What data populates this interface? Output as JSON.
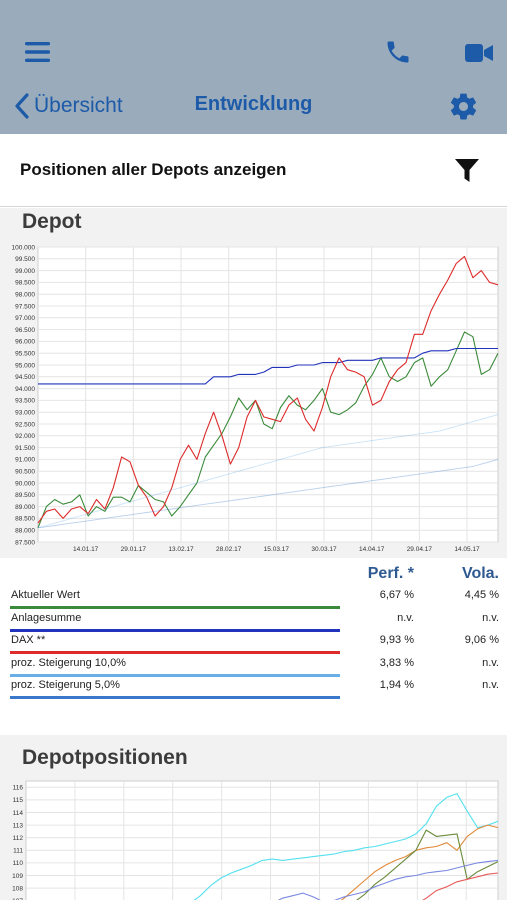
{
  "nav": {
    "back_label": "Übersicht",
    "title": "Entwicklung",
    "icons": [
      "menu-icon",
      "phone-icon",
      "video-icon",
      "chevron-left-icon",
      "gear-icon",
      "filter-icon"
    ]
  },
  "filter": {
    "label": "Positionen aller Depots anzeigen"
  },
  "depot": {
    "title": "Depot",
    "legend_headers": {
      "perf": "Perf. *",
      "vola": "Vola."
    },
    "legend": [
      {
        "name": "Aktueller Wert",
        "perf": "6,67 %",
        "vola": "4,45 %",
        "color": "#3a8a3a"
      },
      {
        "name": "Anlagesumme",
        "perf": "n.v.",
        "vola": "n.v.",
        "color": "#2233bb"
      },
      {
        "name": "DAX **",
        "perf": "9,93 %",
        "vola": "9,06 %",
        "color": "#dd2a2a"
      },
      {
        "name": "proz. Steigerung 10,0%",
        "perf": "3,83 %",
        "vola": "n.v.",
        "color": "#6aaee8"
      },
      {
        "name": "proz. Steigerung 5,0%",
        "perf": "1,94 %",
        "vola": "n.v.",
        "color": "#3a78cc"
      }
    ]
  },
  "positions": {
    "title": "Depotpositionen"
  },
  "chart_data": [
    {
      "type": "line",
      "title": "Depot",
      "x_ticks": [
        "14.01.17",
        "29.01.17",
        "13.02.17",
        "28.02.17",
        "15.03.17",
        "30.03.17",
        "14.04.17",
        "29.04.17",
        "14.05.17"
      ],
      "y_ticks": [
        "87.500",
        "88.000",
        "88.500",
        "89.000",
        "89.500",
        "90.000",
        "90.500",
        "91.000",
        "91.500",
        "92.000",
        "92.500",
        "93.000",
        "93.500",
        "94.000",
        "94.500",
        "95.000",
        "95.500",
        "96.000",
        "96.500",
        "97.000",
        "97.500",
        "98.000",
        "98.500",
        "99.000",
        "99.500",
        "100.000"
      ],
      "ylim": [
        87500,
        100000
      ],
      "grid": true,
      "series": [
        {
          "name": "Aktueller Wert",
          "color": "#3a8a3a",
          "values": [
            88100,
            89000,
            89300,
            89100,
            89200,
            89500,
            88600,
            89000,
            88800,
            89400,
            89400,
            89200,
            89900,
            89600,
            89300,
            89200,
            88600,
            89000,
            89500,
            90000,
            91100,
            91600,
            92100,
            92800,
            93600,
            93100,
            93500,
            92500,
            92300,
            93200,
            93700,
            93300,
            93100,
            93500,
            94000,
            93000,
            92900,
            93100,
            93400,
            94100,
            94600,
            95300,
            94500,
            94300,
            94500,
            95100,
            95300,
            94100,
            94500,
            94800,
            95600,
            96400,
            96200,
            94600,
            94800,
            95500
          ]
        },
        {
          "name": "Anlagesumme",
          "color": "#2233bb",
          "values": [
            94200,
            94200,
            94200,
            94200,
            94200,
            94200,
            94200,
            94200,
            94200,
            94200,
            94200,
            94200,
            94200,
            94200,
            94200,
            94200,
            94200,
            94200,
            94200,
            94200,
            94200,
            94500,
            94500,
            94500,
            94600,
            94600,
            94600,
            94700,
            94900,
            94900,
            94900,
            95000,
            95000,
            95000,
            95100,
            95100,
            95100,
            95200,
            95200,
            95200,
            95200,
            95300,
            95300,
            95300,
            95300,
            95300,
            95500,
            95600,
            95600,
            95600,
            95700,
            95700,
            95700,
            95700,
            95700,
            95700
          ]
        },
        {
          "name": "DAX **",
          "color": "#dd2a2a",
          "values": [
            88300,
            88800,
            88900,
            88500,
            88900,
            89000,
            88700,
            89300,
            88900,
            89800,
            91100,
            90900,
            89900,
            89400,
            88600,
            89000,
            89800,
            91000,
            91600,
            91000,
            92100,
            93000,
            92000,
            90800,
            91500,
            92800,
            93500,
            92800,
            92700,
            92600,
            93300,
            93600,
            92700,
            92200,
            93200,
            94500,
            95300,
            94800,
            94700,
            94500,
            93300,
            93500,
            94300,
            94800,
            95100,
            96300,
            96300,
            97300,
            98000,
            98600,
            99300,
            99600,
            98700,
            99000,
            98500,
            98400
          ]
        },
        {
          "name": "proz. Steigerung 10,0%",
          "color": "#6aaee8",
          "values": [
            88100,
            88200,
            88300,
            88400,
            88500,
            88600,
            88700,
            88800,
            88900,
            89000,
            89100,
            89200,
            89300,
            89400,
            89500,
            89600,
            89700,
            89800,
            89900,
            90000,
            90100,
            90200,
            90300,
            90400,
            90500,
            90600,
            90700,
            90800,
            90900,
            91000,
            91100,
            91200,
            91300,
            91400,
            91500,
            91550,
            91600,
            91650,
            91700,
            91750,
            91800,
            91850,
            91900,
            91950,
            92000,
            92050,
            92100,
            92150,
            92200,
            92300,
            92400,
            92500,
            92600,
            92700,
            92800,
            92900
          ]
        },
        {
          "name": "proz. Steigerung 5,0%",
          "color": "#3a78cc",
          "values": [
            88100,
            88150,
            88200,
            88250,
            88300,
            88350,
            88400,
            88450,
            88500,
            88550,
            88600,
            88650,
            88700,
            88750,
            88800,
            88850,
            88900,
            88950,
            89000,
            89050,
            89100,
            89150,
            89200,
            89250,
            89300,
            89350,
            89400,
            89450,
            89500,
            89550,
            89600,
            89650,
            89700,
            89750,
            89800,
            89850,
            89900,
            89950,
            90000,
            90050,
            90100,
            90150,
            90200,
            90250,
            90300,
            90350,
            90400,
            90450,
            90500,
            90550,
            90600,
            90650,
            90700,
            90800,
            90900,
            91000
          ]
        }
      ]
    },
    {
      "type": "line",
      "title": "Depotpositionen",
      "y_ticks": [
        "107",
        "108",
        "109",
        "110",
        "111",
        "112",
        "113",
        "114",
        "115",
        "116"
      ],
      "ylim": [
        106.5,
        116.5
      ],
      "grid": true,
      "series": [
        {
          "color": "#55e0f0",
          "values": [
            null,
            null,
            null,
            null,
            null,
            null,
            null,
            null,
            null,
            null,
            null,
            null,
            null,
            null,
            null,
            null,
            106.8,
            107.4,
            108.2,
            108.8,
            109.2,
            109.5,
            109.8,
            110.2,
            110.3,
            110.2,
            110.3,
            110.4,
            110.5,
            110.6,
            110.7,
            110.9,
            111.0,
            111.2,
            111.3,
            111.5,
            111.7,
            111.9,
            112.3,
            113.1,
            114.5,
            115.2,
            115.5,
            114.1,
            112.8,
            113.0,
            113.3
          ]
        },
        {
          "color": "#e08a3a",
          "values": [
            null,
            null,
            null,
            null,
            null,
            null,
            null,
            null,
            null,
            null,
            null,
            null,
            null,
            null,
            null,
            null,
            null,
            null,
            null,
            null,
            null,
            null,
            null,
            null,
            null,
            null,
            null,
            null,
            null,
            null,
            106.6,
            107.2,
            107.9,
            108.6,
            109.3,
            109.8,
            110.2,
            110.5,
            111.0,
            111.2,
            111.3,
            111.6,
            111.0,
            112.1,
            112.7,
            113.0,
            112.8
          ]
        },
        {
          "color": "#6a8a3a",
          "values": [
            null,
            null,
            null,
            null,
            null,
            null,
            null,
            null,
            null,
            null,
            null,
            null,
            null,
            null,
            null,
            null,
            null,
            null,
            null,
            null,
            null,
            null,
            null,
            null,
            null,
            null,
            null,
            null,
            null,
            null,
            null,
            null,
            106.9,
            107.5,
            108.3,
            108.9,
            109.6,
            110.3,
            111.0,
            112.6,
            112.1,
            112.2,
            112.3,
            108.7,
            109.3,
            109.7,
            110.1
          ]
        },
        {
          "color": "#7a88e0",
          "values": [
            null,
            null,
            null,
            null,
            null,
            null,
            null,
            null,
            null,
            null,
            null,
            null,
            null,
            null,
            null,
            null,
            null,
            null,
            null,
            null,
            null,
            null,
            null,
            106.6,
            106.8,
            107.2,
            107.4,
            107.6,
            107.3,
            106.9,
            107.0,
            107.3,
            107.5,
            107.7,
            108.1,
            108.4,
            108.7,
            108.9,
            109.0,
            109.2,
            109.3,
            109.4,
            109.6,
            109.8,
            110.0,
            110.1,
            110.2
          ]
        },
        {
          "color": "#e85a5a",
          "values": [
            null,
            null,
            null,
            null,
            null,
            null,
            null,
            null,
            null,
            null,
            null,
            null,
            null,
            null,
            null,
            null,
            null,
            null,
            null,
            null,
            null,
            null,
            null,
            null,
            null,
            null,
            null,
            null,
            null,
            null,
            null,
            null,
            null,
            null,
            null,
            null,
            null,
            null,
            106.7,
            107.2,
            107.8,
            108.1,
            108.5,
            108.7,
            108.9,
            109.1,
            109.2
          ]
        }
      ]
    }
  ]
}
